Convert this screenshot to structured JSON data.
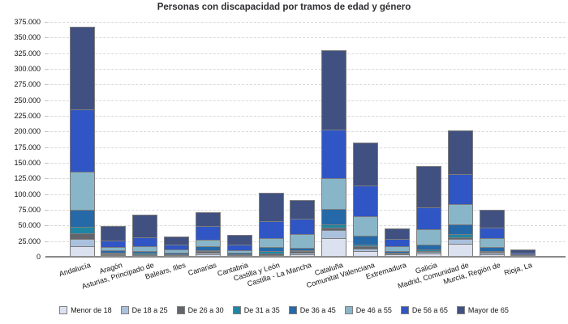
{
  "chart_data": {
    "type": "bar",
    "stacked": true,
    "title": "Personas con discapacidad por tramos de edad y género",
    "categories": [
      "Andalucía",
      "Aragón",
      "Asturias, Principado de",
      "Balears, Illes",
      "Canarias",
      "Cantabria",
      "Castilla y León",
      "Castilla - La Mancha",
      "Cataluña",
      "Comunitat Valenciana",
      "Extremadura",
      "Galicia",
      "Madrid, Comunidad de",
      "Murcia, Región de",
      "Rioja, La"
    ],
    "series": [
      {
        "name": "Menor de 18",
        "color": "#dce1f0",
        "values": [
          17000,
          2500,
          2000,
          1500,
          4000,
          1500,
          1700,
          4500,
          29800,
          9200,
          3500,
          5000,
          21100,
          3500,
          300
        ]
      },
      {
        "name": "De 18 a 25",
        "color": "#aac1dd",
        "values": [
          12000,
          1500,
          1300,
          1200,
          3000,
          1000,
          1500,
          2500,
          13000,
          4300,
          1300,
          2500,
          7000,
          2500,
          350
        ]
      },
      {
        "name": "De 26 a 30",
        "color": "#63656d",
        "values": [
          9000,
          1200,
          1200,
          800,
          1500,
          700,
          2600,
          1800,
          4200,
          3100,
          900,
          1700,
          3300,
          1600,
          250
        ]
      },
      {
        "name": "De 31 a 35",
        "color": "#1e86a3",
        "values": [
          10000,
          1500,
          1500,
          1000,
          2000,
          800,
          3500,
          1700,
          5000,
          3400,
          1000,
          2100,
          4400,
          1800,
          300
        ]
      },
      {
        "name": "De 36 a 45",
        "color": "#2569a8",
        "values": [
          27000,
          3800,
          3500,
          2500,
          6000,
          2000,
          6500,
          3500,
          24000,
          14000,
          2500,
          8600,
          16300,
          6400,
          800
        ]
      },
      {
        "name": "De 46 a 55",
        "color": "#88b6c8",
        "values": [
          60500,
          5500,
          7500,
          4500,
          10500,
          4500,
          14200,
          22500,
          49500,
          30500,
          7300,
          23800,
          32400,
          14200,
          1500
        ]
      },
      {
        "name": "De 56 a 65",
        "color": "#2f56c4",
        "values": [
          100000,
          10500,
          14000,
          8500,
          22500,
          9000,
          27000,
          24500,
          77500,
          49000,
          12000,
          35300,
          47000,
          16000,
          2500
        ]
      },
      {
        "name": "Mayor de 65",
        "color": "#405181",
        "values": [
          130500,
          21500,
          35500,
          11000,
          20500,
          13500,
          44000,
          28000,
          126000,
          68000,
          16000,
          64500,
          69500,
          28000,
          4500
        ]
      }
    ],
    "ylim": [
      0,
      375000
    ],
    "ytick_step": 25000,
    "ytick_labels": [
      "0",
      "25.000",
      "50.000",
      "75.000",
      "100.000",
      "125.000",
      "150.000",
      "175.000",
      "200.000",
      "225.000",
      "250.000",
      "275.000",
      "300.000",
      "325.000",
      "350.000",
      "375.000"
    ],
    "grid": "horizontal-dashed",
    "legend_position": "bottom",
    "colors": {
      "gridline": "#d8d8d8",
      "axis_line": "#8a8a8a",
      "bar_border": "#7d7d7d",
      "tick_text": "#141414",
      "title_text": "#2e2e33",
      "background": "#ffffff"
    }
  }
}
